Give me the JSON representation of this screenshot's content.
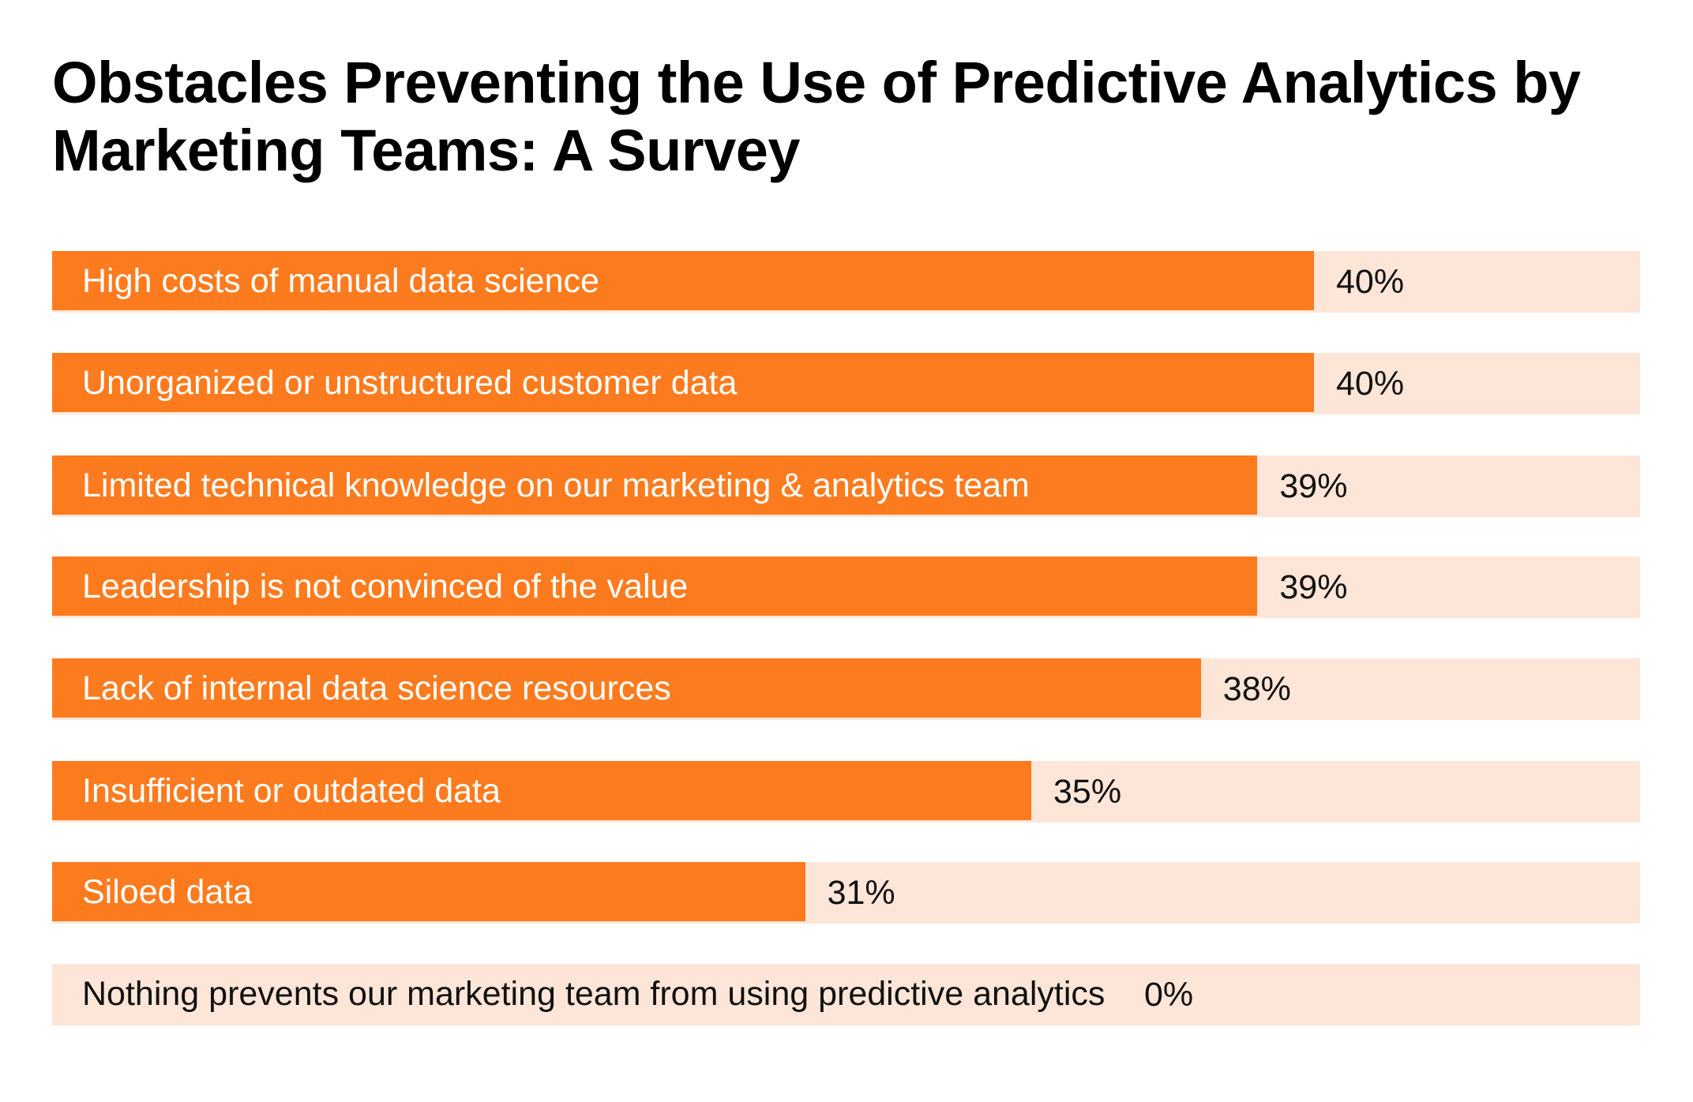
{
  "chart_data": {
    "type": "bar",
    "orientation": "horizontal",
    "title": "Obstacles Preventing the Use of Predictive Analytics by Marketing Teams: A Survey",
    "categories": [
      "High costs of manual data science",
      "Unorganized or unstructured customer data",
      "Limited technical knowledge on our marketing & analytics team",
      "Leadership is not convinced of the value",
      "Lack of internal data science resources",
      "Insufficient or outdated data",
      "Siloed data",
      "Nothing prevents our marketing team from using predictive analytics"
    ],
    "values": [
      40,
      40,
      39,
      39,
      38,
      35,
      31,
      0
    ],
    "value_labels": [
      "40%",
      "40%",
      "39%",
      "39%",
      "38%",
      "35%",
      "31%",
      "0%"
    ],
    "unit": "%",
    "grid": false,
    "legend": "none",
    "colors": {
      "bar": "#FC7B1E",
      "track": "#FDE6D8",
      "text_on_bar": "#FFFFFF",
      "text": "#111111"
    }
  }
}
